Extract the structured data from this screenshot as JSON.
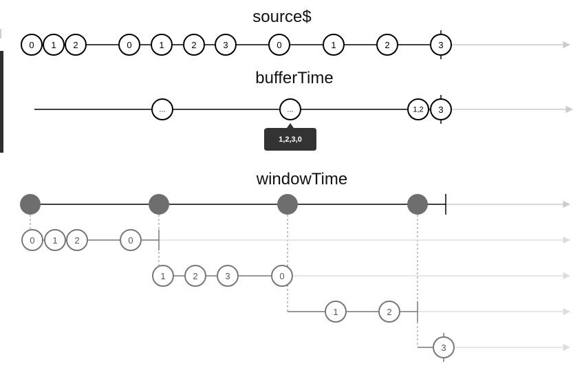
{
  "titles": {
    "source": "source$",
    "buffer": "bufferTime",
    "window": "windowTime"
  },
  "source_marbles": [
    "0",
    "1",
    "2",
    "0",
    "1",
    "2",
    "3",
    "0",
    "1",
    "2",
    "3"
  ],
  "buffer_marbles": [
    "...",
    "...",
    "1,2",
    "3"
  ],
  "tooltip": "1,2,3,0",
  "window_groups": [
    [
      "0",
      "1",
      "2",
      "0"
    ],
    [
      "1",
      "2",
      "3",
      "0"
    ],
    [
      "1",
      "2"
    ],
    [
      "3"
    ]
  ],
  "colors": {
    "line_dark": "#000000",
    "line_gray": "#777777",
    "arrow": "#cccccc",
    "arrow_light": "#dddddd",
    "window_dot": "#6e6e6e",
    "tooltip_bg": "#333333"
  }
}
